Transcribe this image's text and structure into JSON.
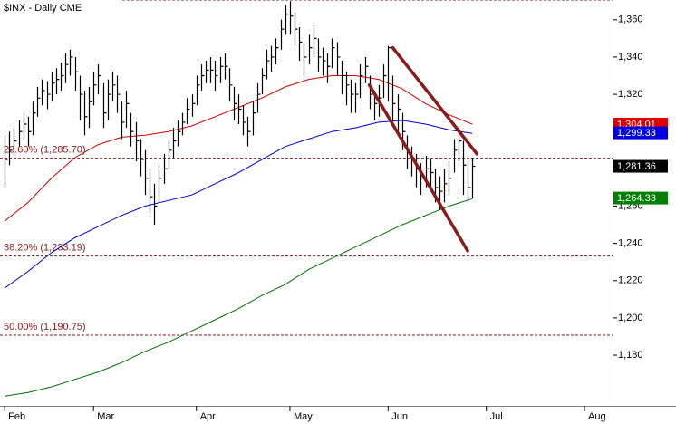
{
  "chart_data": {
    "type": "ohlc",
    "title": "$INX - Daily  CME",
    "bar_color": "#000000",
    "x": [
      0,
      1,
      2,
      3,
      4,
      5,
      6,
      7,
      8,
      9,
      10,
      11,
      12,
      13,
      14,
      15,
      16,
      17,
      18,
      19,
      20,
      21,
      22,
      23,
      24,
      25,
      26,
      27,
      28,
      29,
      30,
      31,
      32,
      33,
      34,
      35,
      36,
      37,
      38,
      39,
      40,
      41,
      42,
      43,
      44,
      45,
      46,
      47,
      48,
      49,
      50,
      51,
      52,
      53,
      54,
      55,
      56,
      57,
      58,
      59,
      60,
      61,
      62,
      63,
      64,
      65,
      66,
      67,
      68,
      69,
      70,
      71,
      72,
      73,
      74,
      75,
      76,
      77,
      78,
      79,
      80,
      81,
      82,
      83,
      84,
      85,
      86,
      87,
      88,
      89,
      90,
      91,
      92,
      93,
      94,
      95,
      96,
      97,
      98,
      99,
      100
    ],
    "high": [
      1298,
      1300,
      1302,
      1306,
      1310,
      1308,
      1316,
      1324,
      1328,
      1327,
      1332,
      1334,
      1337,
      1342,
      1344,
      1340,
      1330,
      1322,
      1324,
      1332,
      1336,
      1326,
      1328,
      1332,
      1330,
      1316,
      1322,
      1310,
      1305,
      1296,
      1290,
      1280,
      1272,
      1282,
      1288,
      1296,
      1302,
      1306,
      1310,
      1318,
      1320,
      1330,
      1336,
      1338,
      1340,
      1338,
      1340,
      1342,
      1334,
      1324,
      1320,
      1314,
      1308,
      1316,
      1326,
      1334,
      1344,
      1346,
      1350,
      1360,
      1368,
      1370,
      1364,
      1356,
      1348,
      1352,
      1357,
      1350,
      1345,
      1342,
      1350,
      1348,
      1338,
      1332,
      1328,
      1326,
      1336,
      1340,
      1330,
      1322,
      1325,
      1336,
      1346,
      1330,
      1320,
      1310,
      1298,
      1292,
      1288,
      1283,
      1287,
      1285,
      1280,
      1276,
      1280,
      1284,
      1296,
      1302,
      1295,
      1284,
      1286
    ],
    "low": [
      1270,
      1282,
      1286,
      1292,
      1296,
      1292,
      1298,
      1308,
      1314,
      1312,
      1316,
      1320,
      1322,
      1326,
      1330,
      1322,
      1306,
      1298,
      1302,
      1314,
      1320,
      1302,
      1306,
      1316,
      1310,
      1296,
      1302,
      1292,
      1284,
      1276,
      1266,
      1256,
      1250,
      1262,
      1272,
      1280,
      1286,
      1292,
      1298,
      1304,
      1308,
      1314,
      1322,
      1326,
      1326,
      1322,
      1326,
      1328,
      1316,
      1306,
      1304,
      1298,
      1292,
      1298,
      1310,
      1320,
      1328,
      1332,
      1336,
      1344,
      1352,
      1352,
      1346,
      1338,
      1330,
      1336,
      1340,
      1332,
      1330,
      1326,
      1334,
      1330,
      1320,
      1314,
      1310,
      1310,
      1318,
      1326,
      1312,
      1306,
      1308,
      1318,
      1316,
      1304,
      1300,
      1290,
      1280,
      1276,
      1270,
      1266,
      1270,
      1268,
      1262,
      1258,
      1262,
      1266,
      1278,
      1284,
      1266,
      1262,
      1264
    ],
    "close": [
      1285,
      1290,
      1295,
      1300,
      1304,
      1300,
      1310,
      1318,
      1322,
      1320,
      1326,
      1328,
      1330,
      1336,
      1340,
      1332,
      1320,
      1308,
      1316,
      1325,
      1330,
      1310,
      1320,
      1325,
      1320,
      1305,
      1315,
      1300,
      1295,
      1285,
      1275,
      1265,
      1260,
      1275,
      1280,
      1290,
      1295,
      1300,
      1305,
      1312,
      1315,
      1325,
      1330,
      1333,
      1333,
      1330,
      1335,
      1335,
      1325,
      1315,
      1312,
      1305,
      1300,
      1310,
      1320,
      1330,
      1338,
      1340,
      1345,
      1355,
      1363,
      1362,
      1355,
      1348,
      1340,
      1345,
      1350,
      1340,
      1338,
      1335,
      1345,
      1340,
      1330,
      1325,
      1320,
      1320,
      1330,
      1335,
      1320,
      1315,
      1318,
      1330,
      1345,
      1315,
      1312,
      1300,
      1290,
      1285,
      1280,
      1275,
      1280,
      1278,
      1270,
      1268,
      1272,
      1275,
      1290,
      1295,
      1282,
      1270,
      1281.36
    ],
    "overlay_x": [
      0,
      5,
      10,
      15,
      20,
      25,
      30,
      35,
      40,
      45,
      50,
      55,
      60,
      65,
      70,
      75,
      80,
      85,
      90,
      95,
      100
    ],
    "overlays": [
      {
        "color": "#d00000",
        "values": [
          1252,
          1262,
          1275,
          1286,
          1293,
          1297,
          1298,
          1300,
          1303,
          1308,
          1313,
          1318,
          1324,
          1328,
          1330,
          1330,
          1328,
          1323,
          1315,
          1309,
          1304
        ]
      },
      {
        "color": "#0000d0",
        "values": [
          1216,
          1225,
          1235,
          1243,
          1249,
          1255,
          1260,
          1263,
          1266,
          1272,
          1278,
          1285,
          1292,
          1296,
          1300,
          1302,
          1305,
          1306,
          1304,
          1301,
          1299
        ]
      },
      {
        "color": "#007000",
        "values": [
          1158,
          1160,
          1163,
          1167,
          1171,
          1176,
          1182,
          1187,
          1193,
          1199,
          1205,
          1212,
          1218,
          1226,
          1232,
          1238,
          1244,
          1250,
          1255,
          1260,
          1264
        ]
      }
    ],
    "trendline_color": "#8b1a1a",
    "trendlines": [
      {
        "x": [
          83,
          101
        ],
        "y": [
          1345,
          1288
        ]
      },
      {
        "x": [
          78,
          99
        ],
        "y": [
          1325,
          1236
        ]
      }
    ],
    "level_color": "#8b1a1a",
    "peak_line": 1370.58,
    "levels": [
      {
        "value": 1285.7,
        "label": "23.60% (1,285.70)"
      },
      {
        "value": 1233.19,
        "label": "38.20% (1,233.19)"
      },
      {
        "value": 1190.75,
        "label": "50.00% (1,190.75)"
      }
    ],
    "price_flags": [
      {
        "value": 1304.01,
        "label": "1,304.01",
        "color": "#e00000"
      },
      {
        "value": 1299.33,
        "label": "1,299.33",
        "color": "#0000e0"
      },
      {
        "value": 1281.36,
        "label": "1,281.36",
        "color": "#000000"
      },
      {
        "value": 1264.33,
        "label": "1,264.33",
        "color": "#008000"
      }
    ],
    "xlim": [
      -1,
      130
    ],
    "xticks": [
      {
        "value": 0,
        "label": "Feb"
      },
      {
        "value": 19,
        "label": "Mar"
      },
      {
        "value": 41,
        "label": "Apr"
      },
      {
        "value": 61,
        "label": "May"
      },
      {
        "value": 82,
        "label": "Jun"
      },
      {
        "value": 103,
        "label": "Jul"
      },
      {
        "value": 124,
        "label": "Aug"
      }
    ],
    "ylim": [
      1152.8,
      1370.6
    ],
    "yticks": [
      {
        "value": 1180,
        "label": "1,180"
      },
      {
        "value": 1200,
        "label": "1,200"
      },
      {
        "value": 1220,
        "label": "1,220"
      },
      {
        "value": 1240,
        "label": "1,240"
      },
      {
        "value": 1260,
        "label": "1,260"
      },
      {
        "value": 1280,
        "label": "1,280"
      },
      {
        "value": 1300,
        "label": "1,300"
      },
      {
        "value": 1320,
        "label": "1,320"
      },
      {
        "value": 1340,
        "label": "1,340"
      },
      {
        "value": 1360,
        "label": "1,360"
      }
    ]
  }
}
